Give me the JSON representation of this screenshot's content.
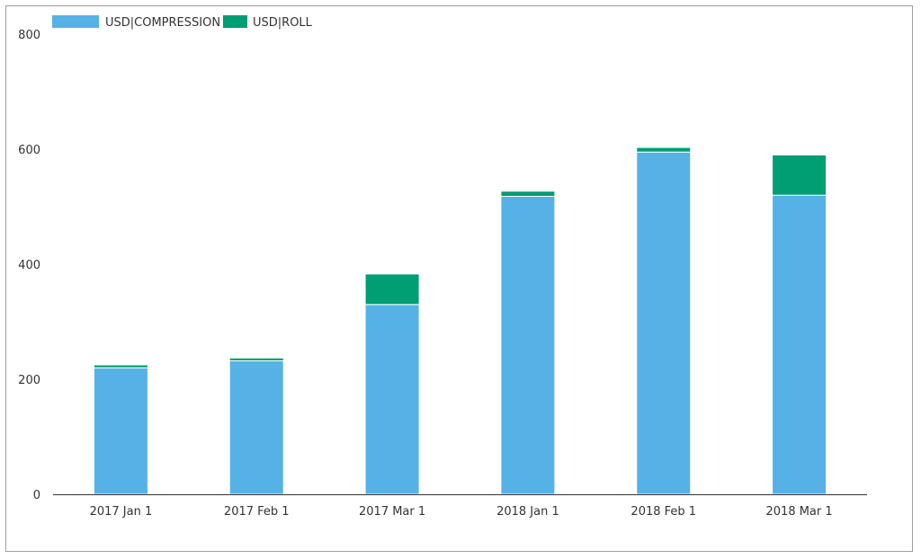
{
  "chart_data": {
    "type": "bar",
    "stacked": true,
    "categories": [
      "2017 Jan 1",
      "2017 Feb 1",
      "2017 Mar 1",
      "2018 Jan 1",
      "2018 Feb 1",
      "2018 Mar 1"
    ],
    "series": [
      {
        "name": "USD|COMPRESSION",
        "color": "#56b2e6",
        "values": [
          220,
          232,
          330,
          518,
          595,
          520
        ]
      },
      {
        "name": "USD|ROLL",
        "color": "#009e73",
        "values": [
          5,
          5,
          53,
          9,
          8,
          70
        ]
      }
    ],
    "title": "",
    "xlabel": "",
    "ylabel": "",
    "ylim": [
      0,
      800
    ],
    "yticks": [
      0,
      200,
      400,
      600,
      800
    ],
    "grid": false,
    "legend_position": "top-left"
  }
}
